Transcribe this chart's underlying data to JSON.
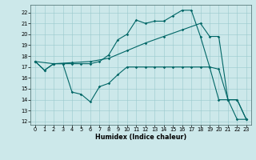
{
  "xlabel": "Humidex (Indice chaleur)",
  "xlim": [
    -0.5,
    23.5
  ],
  "ylim": [
    11.7,
    22.7
  ],
  "yticks": [
    12,
    13,
    14,
    15,
    16,
    17,
    18,
    19,
    20,
    21,
    22
  ],
  "xticks": [
    0,
    1,
    2,
    3,
    4,
    5,
    6,
    7,
    8,
    9,
    10,
    11,
    12,
    13,
    14,
    15,
    16,
    17,
    18,
    19,
    20,
    21,
    22,
    23
  ],
  "bg_color": "#cce8ea",
  "grid_color": "#99c8cc",
  "line_color": "#006666",
  "top_x": [
    0,
    1,
    2,
    3,
    4,
    5,
    6,
    7,
    8,
    9,
    10,
    11,
    12,
    13,
    14,
    15,
    16,
    17,
    18,
    19,
    20,
    21,
    22,
    23
  ],
  "top_y": [
    17.5,
    16.7,
    17.3,
    17.3,
    17.3,
    17.3,
    17.3,
    17.5,
    18.1,
    19.5,
    20.0,
    21.3,
    21.0,
    21.2,
    21.2,
    21.7,
    22.2,
    22.2,
    19.8,
    17.0,
    14.0,
    14.0,
    12.2,
    12.2
  ],
  "mid_x": [
    0,
    2,
    4,
    6,
    8,
    10,
    12,
    14,
    16,
    18,
    19,
    20,
    21,
    22,
    23
  ],
  "mid_y": [
    17.5,
    17.3,
    17.4,
    17.5,
    17.8,
    18.5,
    19.2,
    19.8,
    20.4,
    21.0,
    19.8,
    19.8,
    14.0,
    14.0,
    12.2
  ],
  "bot_x": [
    0,
    1,
    2,
    3,
    4,
    5,
    6,
    7,
    8,
    9,
    10,
    11,
    12,
    13,
    14,
    15,
    16,
    17,
    18,
    19,
    20,
    21,
    22,
    23
  ],
  "bot_y": [
    17.5,
    16.7,
    17.3,
    17.3,
    14.7,
    14.5,
    13.8,
    15.2,
    15.5,
    16.3,
    17.0,
    17.0,
    17.0,
    17.0,
    17.0,
    17.0,
    17.0,
    17.0,
    17.0,
    17.0,
    16.8,
    14.0,
    14.0,
    12.2
  ]
}
